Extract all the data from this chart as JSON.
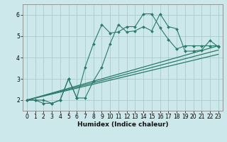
{
  "xlabel": "Humidex (Indice chaleur)",
  "bg_color": "#cce8ea",
  "grid_color": "#aacccc",
  "line_color": "#2a7a6a",
  "xlim": [
    -0.5,
    23.5
  ],
  "ylim": [
    1.5,
    6.5
  ],
  "yticks": [
    2,
    3,
    4,
    5,
    6
  ],
  "xticks": [
    0,
    1,
    2,
    3,
    4,
    5,
    6,
    7,
    8,
    9,
    10,
    11,
    12,
    13,
    14,
    15,
    16,
    17,
    18,
    19,
    20,
    21,
    22,
    23
  ],
  "series1_x": [
    0,
    1,
    2,
    3,
    4,
    5,
    6,
    7,
    8,
    9,
    10,
    11,
    12,
    13,
    14,
    15,
    16,
    17,
    18,
    19,
    20,
    21,
    22,
    23
  ],
  "series1_y": [
    2.0,
    2.0,
    2.0,
    1.85,
    2.0,
    3.0,
    2.1,
    3.55,
    4.65,
    5.55,
    5.15,
    5.2,
    5.45,
    5.45,
    6.05,
    6.05,
    5.4,
    4.85,
    4.4,
    4.55,
    4.55,
    4.55,
    4.55,
    4.55
  ],
  "series2_x": [
    0,
    1,
    2,
    3,
    4,
    5,
    6,
    7,
    8,
    9,
    10,
    11,
    12,
    13,
    14,
    15,
    16,
    17,
    18,
    19,
    20,
    21,
    22,
    23
  ],
  "series2_y": [
    2.0,
    2.0,
    1.85,
    1.85,
    2.0,
    3.0,
    2.1,
    2.1,
    2.9,
    3.55,
    4.65,
    5.55,
    5.2,
    5.25,
    5.45,
    5.25,
    6.05,
    5.45,
    5.35,
    4.3,
    4.3,
    4.35,
    4.8,
    4.5
  ],
  "line3_x": [
    0,
    23
  ],
  "line3_y": [
    2.0,
    4.55
  ],
  "line4_x": [
    0,
    23
  ],
  "line4_y": [
    2.0,
    4.35
  ],
  "line5_x": [
    0,
    23
  ],
  "line5_y": [
    2.0,
    4.15
  ]
}
